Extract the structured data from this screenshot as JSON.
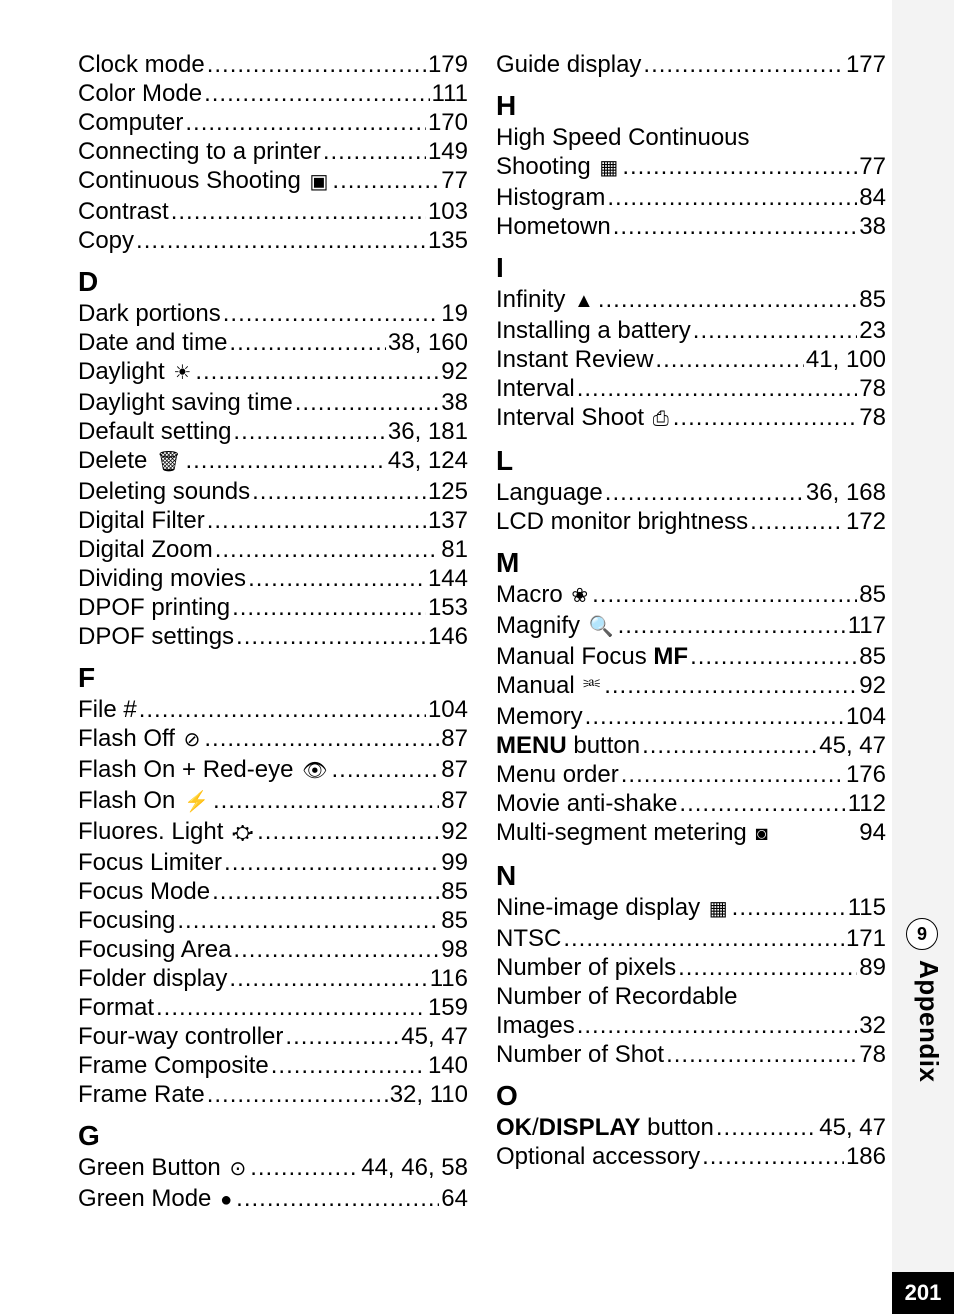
{
  "page_number": "201",
  "appendix_num": "9",
  "appendix_label": "Appendix",
  "icons": {
    "cont_shoot": "▣",
    "daylight": "☀",
    "delete": "🗑",
    "flash_off": "⊘",
    "flash_redeye": "👁",
    "flash_on": "⚡",
    "fluores": "⛮",
    "green_button": "⊙",
    "green_mode": "●",
    "hs_cont": "▦",
    "infinity": "▲",
    "interval_shoot": "⎙",
    "macro": "❀",
    "magnify": "🔍",
    "manual": "⎃",
    "multi_segment": "◙",
    "nine_image": "▦"
  },
  "col_left": {
    "c_entries": [
      {
        "label": "Clock mode",
        "page": "179"
      },
      {
        "label": "Color Mode",
        "page": "111"
      },
      {
        "label": "Computer",
        "page": "170"
      },
      {
        "label": "Connecting to a printer",
        "page": "149"
      },
      {
        "label": "Continuous Shooting",
        "icon": "cont_shoot",
        "page": "77"
      },
      {
        "label": "Contrast",
        "page": "103"
      },
      {
        "label": "Copy",
        "page": "135"
      }
    ],
    "letter_d": "D",
    "d_entries": [
      {
        "label": "Dark portions",
        "page": "19"
      },
      {
        "label": "Date and time",
        "page": "38, 160"
      },
      {
        "label": "Daylight",
        "icon": "daylight",
        "page": "92"
      },
      {
        "label": "Daylight saving time",
        "page": "38"
      },
      {
        "label": "Default setting",
        "page": "36, 181"
      },
      {
        "label": "Delete",
        "icon": "delete",
        "page": "43, 124"
      },
      {
        "label": "Deleting sounds",
        "page": "125"
      },
      {
        "label": "Digital Filter",
        "page": "137"
      },
      {
        "label": "Digital Zoom",
        "page": "81"
      },
      {
        "label": "Dividing movies",
        "page": "144"
      },
      {
        "label": "DPOF printing",
        "page": "153"
      },
      {
        "label": "DPOF settings",
        "page": "146"
      }
    ],
    "letter_f": "F",
    "f_entries": [
      {
        "label": "File #",
        "page": "104"
      },
      {
        "label": "Flash Off",
        "icon": "flash_off",
        "page": "87"
      },
      {
        "label": "Flash On + Red-eye",
        "icon": "flash_redeye",
        "page": "87"
      },
      {
        "label": "Flash On",
        "icon": "flash_on",
        "page": "87"
      },
      {
        "label": "Fluores. Light",
        "icon": "fluores",
        "page": "92"
      },
      {
        "label": "Focus Limiter",
        "page": "99"
      },
      {
        "label": "Focus Mode",
        "page": "85"
      },
      {
        "label": "Focusing",
        "page": "85"
      },
      {
        "label": "Focusing Area",
        "page": "98"
      },
      {
        "label": "Folder display",
        "page": "116"
      },
      {
        "label": "Format",
        "page": "159"
      },
      {
        "label": "Four-way controller",
        "page": "45, 47"
      },
      {
        "label": "Frame Composite",
        "page": "140"
      },
      {
        "label": "Frame Rate",
        "page": "32, 110"
      }
    ],
    "letter_g": "G",
    "g_entries": [
      {
        "label": "Green Button",
        "icon": "green_button",
        "page": "44, 46, 58"
      },
      {
        "label": "Green Mode",
        "icon": "green_mode",
        "page": "64"
      }
    ]
  },
  "col_right": {
    "g2_entries": [
      {
        "label": "Guide display",
        "page": "177"
      }
    ],
    "letter_h": "H",
    "h_entries": [
      {
        "label": "High Speed Continuous",
        "wrap": true
      },
      {
        "label": "Shooting",
        "icon": "hs_cont",
        "page": "77"
      },
      {
        "label": "Histogram",
        "page": "84"
      },
      {
        "label": "Hometown",
        "page": "38"
      }
    ],
    "letter_i": "I",
    "i_entries": [
      {
        "label": "Infinity",
        "icon": "infinity",
        "page": "85"
      },
      {
        "label": "Installing a battery",
        "page": "23"
      },
      {
        "label": "Instant Review",
        "page": "41, 100"
      },
      {
        "label": "Interval",
        "page": "78"
      },
      {
        "label": "Interval Shoot",
        "icon": "interval_shoot",
        "page": "78"
      }
    ],
    "letter_l": "L",
    "l_entries": [
      {
        "label": "Language",
        "page": "36, 168"
      },
      {
        "label": "LCD monitor brightness",
        "page": "172"
      }
    ],
    "letter_m": "M",
    "m_entries": [
      {
        "label": "Macro",
        "icon": "macro",
        "page": "85"
      },
      {
        "label": "Magnify",
        "icon": "magnify",
        "page": "117"
      },
      {
        "label": "Manual Focus",
        "bold_after": "MF",
        "page": "85"
      },
      {
        "label": "Manual",
        "icon": "manual",
        "page": "92"
      },
      {
        "label": "Memory",
        "page": "104"
      },
      {
        "pre_bold": "MENU",
        "label": " button",
        "page": "45, 47"
      },
      {
        "label": "Menu order",
        "page": "176"
      },
      {
        "label": "Movie anti-shake",
        "page": "112"
      },
      {
        "label": "Multi-segment metering",
        "icon": "multi_segment",
        "page": " 94",
        "nodots": true
      }
    ],
    "letter_n": "N",
    "n_entries": [
      {
        "label": "Nine-image display",
        "icon": "nine_image",
        "page": "115"
      },
      {
        "label": "NTSC",
        "page": "171"
      },
      {
        "label": "Number of pixels",
        "page": "89"
      },
      {
        "label": "Number of Recordable",
        "wrap": true
      },
      {
        "label": "Images",
        "page": "32"
      },
      {
        "label": "Number of Shot",
        "page": "78"
      }
    ],
    "letter_o": "O",
    "o_entries": [
      {
        "pre_bold": "OK",
        "mid": "/",
        "pre_bold2": "DISPLAY",
        "label": " button",
        "page": "45, 47"
      },
      {
        "label": "Optional accessory",
        "page": "186"
      }
    ]
  }
}
